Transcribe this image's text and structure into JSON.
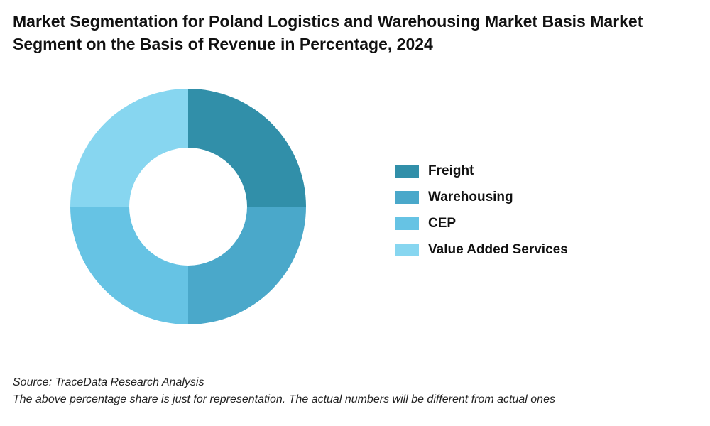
{
  "chart_data": {
    "type": "pie",
    "title": "Market Segmentation for Poland Logistics and Warehousing Market Basis Market Segment on the Basis of Revenue in Percentage, 2024",
    "categories": [
      "Freight",
      "Warehousing",
      "CEP",
      "Value Added Services"
    ],
    "values": [
      25,
      25,
      25,
      25
    ],
    "colors": [
      "#318fa9",
      "#4aa8ca",
      "#66c3e4",
      "#87d6f0"
    ],
    "donut": true,
    "legend": "right"
  },
  "footer": {
    "source": "Source: TraceData Research Analysis",
    "note": "The above percentage share is just for representation. The actual numbers will be different from actual ones"
  }
}
